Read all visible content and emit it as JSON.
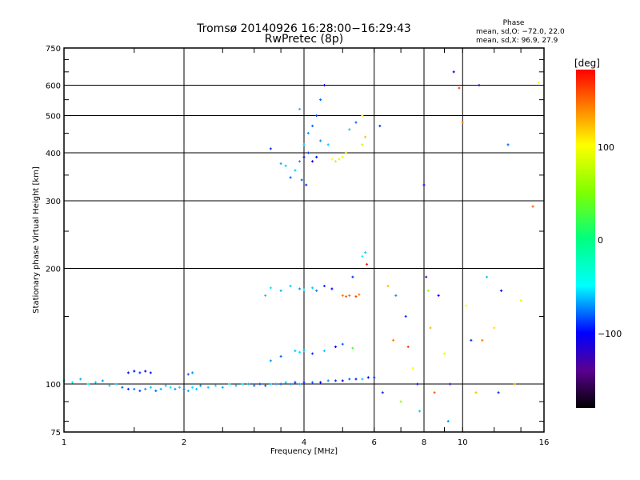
{
  "chart_data": {
    "type": "scatter",
    "title": "Tromsø 20140926 16:28:00−16:29:43",
    "subtitle": "RwPretec (8p)",
    "xlabel": "Frequency [MHz]",
    "ylabel": "Stationary phase Virtual Height [km]",
    "xscale": "log",
    "yscale": "log",
    "xlim": [
      1,
      16
    ],
    "ylim": [
      75,
      750
    ],
    "xticks": [
      "1",
      "2",
      "4",
      "6",
      "8",
      "10",
      "16"
    ],
    "yticks": [
      "75",
      "100",
      "200",
      "300",
      "400",
      "500",
      "600",
      "750"
    ],
    "grid": true,
    "stats": {
      "heading": "Phase",
      "o_line": "mean, sd,O: −72.0, 22.0",
      "x_line": "mean, sd,X:  96.9, 27.9"
    },
    "colorbar": {
      "label": "[deg]",
      "ticks": [
        "100",
        "0",
        "−100"
      ],
      "range": [
        -180,
        180
      ],
      "stops": [
        [
          -180,
          "#000000"
        ],
        [
          -140,
          "#5a0090"
        ],
        [
          -100,
          "#0000ff"
        ],
        [
          -50,
          "#00ffff"
        ],
        [
          0,
          "#00ff80"
        ],
        [
          50,
          "#80ff00"
        ],
        [
          100,
          "#ffff00"
        ],
        [
          140,
          "#ff8000"
        ],
        [
          180,
          "#ff0000"
        ]
      ]
    },
    "points_format": [
      "frequency_MHz",
      "height_km",
      "phase_deg"
    ],
    "points": [
      [
        1.0,
        102,
        -60
      ],
      [
        1.05,
        101,
        -55
      ],
      [
        1.1,
        103,
        -65
      ],
      [
        1.15,
        100,
        -50
      ],
      [
        1.2,
        101,
        -60
      ],
      [
        1.25,
        102,
        -70
      ],
      [
        1.3,
        99,
        -55
      ],
      [
        1.35,
        100,
        -60
      ],
      [
        1.4,
        98,
        -80
      ],
      [
        1.45,
        97,
        -90
      ],
      [
        1.5,
        97,
        -75
      ],
      [
        1.55,
        96,
        -85
      ],
      [
        1.6,
        97,
        -70
      ],
      [
        1.65,
        98,
        -60
      ],
      [
        1.7,
        96,
        -80
      ],
      [
        1.75,
        97,
        -65
      ],
      [
        1.8,
        99,
        -60
      ],
      [
        1.85,
        98,
        -55
      ],
      [
        1.9,
        97,
        -70
      ],
      [
        1.95,
        98,
        -60
      ],
      [
        2.0,
        97,
        -80
      ],
      [
        2.05,
        96,
        -65
      ],
      [
        2.1,
        98,
        -55
      ],
      [
        2.15,
        97,
        -60
      ],
      [
        2.2,
        99,
        -70
      ],
      [
        2.3,
        98,
        -60
      ],
      [
        2.4,
        99,
        -55
      ],
      [
        2.5,
        98,
        -65
      ],
      [
        2.6,
        100,
        -50
      ],
      [
        2.7,
        99,
        -60
      ],
      [
        2.8,
        100,
        -55
      ],
      [
        2.9,
        100,
        -65
      ],
      [
        3.0,
        99,
        -75
      ],
      [
        3.1,
        100,
        -90
      ],
      [
        3.2,
        99,
        -80
      ],
      [
        3.3,
        100,
        -60
      ],
      [
        3.4,
        100,
        -70
      ],
      [
        3.5,
        100,
        -85
      ],
      [
        3.6,
        101,
        -60
      ],
      [
        3.7,
        100,
        -75
      ],
      [
        3.8,
        101,
        -90
      ],
      [
        3.9,
        100,
        -65
      ],
      [
        4.0,
        101,
        -95
      ],
      [
        4.2,
        101,
        -80
      ],
      [
        4.4,
        101,
        -100
      ],
      [
        4.6,
        102,
        -70
      ],
      [
        4.8,
        102,
        -90
      ],
      [
        5.0,
        102,
        -110
      ],
      [
        5.2,
        103,
        -80
      ],
      [
        5.4,
        103,
        -95
      ],
      [
        5.6,
        103,
        -60
      ],
      [
        5.8,
        104,
        -100
      ],
      [
        6.0,
        104,
        -90
      ],
      [
        1.45,
        107,
        -95
      ],
      [
        1.5,
        108,
        -100
      ],
      [
        1.55,
        107,
        -90
      ],
      [
        1.6,
        108,
        -105
      ],
      [
        1.65,
        107,
        -95
      ],
      [
        2.05,
        106,
        -80
      ],
      [
        2.1,
        107,
        -70
      ],
      [
        3.3,
        115,
        -70
      ],
      [
        3.5,
        118,
        -80
      ],
      [
        3.8,
        122,
        -60
      ],
      [
        3.9,
        121,
        -55
      ],
      [
        4.0,
        122,
        -65
      ],
      [
        4.2,
        120,
        -90
      ],
      [
        4.5,
        122,
        -60
      ],
      [
        4.8,
        125,
        -100
      ],
      [
        5.0,
        127,
        -80
      ],
      [
        5.3,
        124,
        30
      ],
      [
        3.2,
        170,
        -60
      ],
      [
        3.3,
        178,
        -55
      ],
      [
        3.5,
        175,
        -65
      ],
      [
        3.7,
        180,
        -60
      ],
      [
        3.9,
        177,
        -70
      ],
      [
        4.0,
        176,
        -50
      ],
      [
        4.2,
        178,
        -60
      ],
      [
        4.3,
        175,
        -75
      ],
      [
        4.5,
        180,
        -90
      ],
      [
        4.7,
        177,
        -100
      ],
      [
        5.0,
        170,
        140
      ],
      [
        5.1,
        169,
        150
      ],
      [
        5.2,
        170,
        145
      ],
      [
        5.4,
        169,
        160
      ],
      [
        5.5,
        171,
        140
      ],
      [
        5.3,
        190,
        -90
      ],
      [
        5.6,
        215,
        -50
      ],
      [
        5.7,
        220,
        -60
      ],
      [
        5.75,
        205,
        170
      ],
      [
        3.5,
        375,
        -65
      ],
      [
        3.6,
        370,
        -60
      ],
      [
        3.7,
        345,
        -80
      ],
      [
        3.8,
        360,
        -60
      ],
      [
        3.9,
        380,
        -70
      ],
      [
        4.0,
        390,
        -100
      ],
      [
        4.1,
        400,
        -90
      ],
      [
        4.2,
        380,
        -110
      ],
      [
        4.3,
        390,
        -100
      ],
      [
        4.0,
        420,
        -60
      ],
      [
        4.1,
        450,
        -70
      ],
      [
        4.2,
        470,
        -80
      ],
      [
        4.3,
        500,
        -90
      ],
      [
        4.4,
        550,
        -80
      ],
      [
        4.5,
        600,
        -100
      ],
      [
        4.4,
        430,
        -70
      ],
      [
        4.6,
        420,
        -60
      ],
      [
        4.7,
        385,
        100
      ],
      [
        4.8,
        380,
        110
      ],
      [
        4.9,
        385,
        105
      ],
      [
        5.0,
        390,
        90
      ],
      [
        5.1,
        400,
        120
      ],
      [
        5.2,
        460,
        -60
      ],
      [
        5.4,
        480,
        -80
      ],
      [
        5.6,
        500,
        90
      ],
      [
        5.7,
        440,
        120
      ],
      [
        5.6,
        420,
        80
      ],
      [
        3.3,
        410,
        -90
      ],
      [
        3.9,
        520,
        -60
      ],
      [
        4.05,
        330,
        -90
      ],
      [
        3.95,
        340,
        -80
      ],
      [
        6.2,
        470,
        -90
      ],
      [
        6.5,
        180,
        120
      ],
      [
        6.7,
        130,
        140
      ],
      [
        7.0,
        90,
        60
      ],
      [
        7.2,
        150,
        -90
      ],
      [
        7.5,
        110,
        100
      ],
      [
        7.8,
        85,
        -60
      ],
      [
        8.0,
        330,
        -100
      ],
      [
        8.1,
        190,
        -140
      ],
      [
        8.3,
        140,
        120
      ],
      [
        8.5,
        95,
        150
      ],
      [
        8.7,
        170,
        -100
      ],
      [
        9.0,
        120,
        90
      ],
      [
        9.2,
        80,
        -70
      ],
      [
        9.5,
        650,
        -110
      ],
      [
        9.8,
        590,
        160
      ],
      [
        10.0,
        480,
        140
      ],
      [
        10.2,
        160,
        100
      ],
      [
        10.5,
        130,
        -90
      ],
      [
        10.8,
        95,
        120
      ],
      [
        11.0,
        600,
        -120
      ],
      [
        11.5,
        190,
        -60
      ],
      [
        12.0,
        140,
        110
      ],
      [
        12.5,
        175,
        -100
      ],
      [
        13.0,
        420,
        -80
      ],
      [
        13.5,
        100,
        130
      ],
      [
        14.0,
        165,
        90
      ],
      [
        15.0,
        290,
        150
      ],
      [
        15.5,
        610,
        100
      ],
      [
        6.3,
        95,
        -90
      ],
      [
        6.8,
        170,
        -70
      ],
      [
        7.3,
        125,
        160
      ],
      [
        7.7,
        100,
        -100
      ],
      [
        8.2,
        175,
        60
      ],
      [
        9.3,
        100,
        -120
      ],
      [
        11.2,
        130,
        140
      ],
      [
        12.3,
        95,
        -90
      ]
    ]
  }
}
